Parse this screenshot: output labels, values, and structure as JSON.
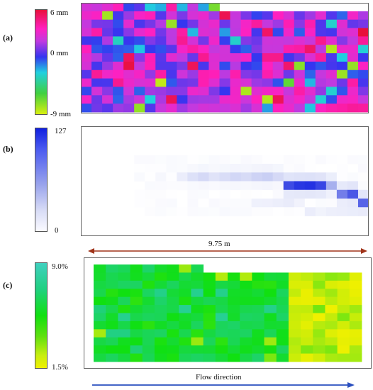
{
  "panels": [
    {
      "label": "(a)",
      "colorbar_ticks": [
        "6 mm",
        "0 mm",
        "-9 mm"
      ]
    },
    {
      "label": "(b)",
      "colorbar_ticks": [
        "127",
        "0"
      ]
    },
    {
      "label": "(c)",
      "colorbar_ticks": [
        "9.0%",
        "1.5%"
      ]
    }
  ],
  "annotations": {
    "length": "9.75 m",
    "flow": "Flow direction",
    "length_arrow_color": "#a0341a",
    "flow_arrow_color": "#2a4fbf"
  },
  "chart_data": [
    {
      "type": "heatmap",
      "title": "",
      "grid": {
        "rows": 13,
        "cols": 27
      },
      "value_range": [
        -9,
        6
      ],
      "unit": "mm",
      "colormap": [
        "#d8ef10",
        "#40d040",
        "#20d0e0",
        "#3535f0",
        "#c03ae0",
        "#ff20c0",
        "#e8103a"
      ],
      "notch": {
        "rows": 1,
        "cols_from": 13
      }
    },
    {
      "type": "heatmap",
      "title": "",
      "grid": {
        "rows": 12,
        "cols": 27
      },
      "value_range": [
        0,
        127
      ],
      "colormap": [
        "#ffffff",
        "#b8c0f0",
        "#1020e0"
      ],
      "band": [
        {
          "col": 7,
          "row": 5,
          "value": 8
        },
        {
          "col": 9,
          "row": 5,
          "value": 18
        },
        {
          "col": 10,
          "row": 5,
          "value": 30
        },
        {
          "col": 11,
          "row": 5,
          "value": 38
        },
        {
          "col": 12,
          "row": 5,
          "value": 28
        },
        {
          "col": 13,
          "row": 5,
          "value": 34
        },
        {
          "col": 14,
          "row": 5,
          "value": 40
        },
        {
          "col": 15,
          "row": 5,
          "value": 36
        },
        {
          "col": 16,
          "row": 5,
          "value": 44
        },
        {
          "col": 17,
          "row": 5,
          "value": 48
        },
        {
          "col": 18,
          "row": 5,
          "value": 38
        },
        {
          "col": 19,
          "row": 6,
          "value": 110
        },
        {
          "col": 20,
          "row": 6,
          "value": 118
        },
        {
          "col": 21,
          "row": 6,
          "value": 120
        },
        {
          "col": 22,
          "row": 6,
          "value": 112
        },
        {
          "col": 23,
          "row": 6,
          "value": 70
        },
        {
          "col": 24,
          "row": 7,
          "value": 90
        },
        {
          "col": 25,
          "row": 7,
          "value": 105
        },
        {
          "col": 26,
          "row": 8,
          "value": 100
        }
      ]
    },
    {
      "type": "heatmap",
      "title": "",
      "grid": {
        "rows": 12,
        "cols": 22
      },
      "value_range": [
        1.5,
        9.0
      ],
      "unit": "%",
      "colormap": [
        "#f0f000",
        "#a8ea10",
        "#10e010",
        "#20d080",
        "#30d0b0"
      ],
      "notch": {
        "rows": 1,
        "cols_from": 9
      }
    }
  ]
}
